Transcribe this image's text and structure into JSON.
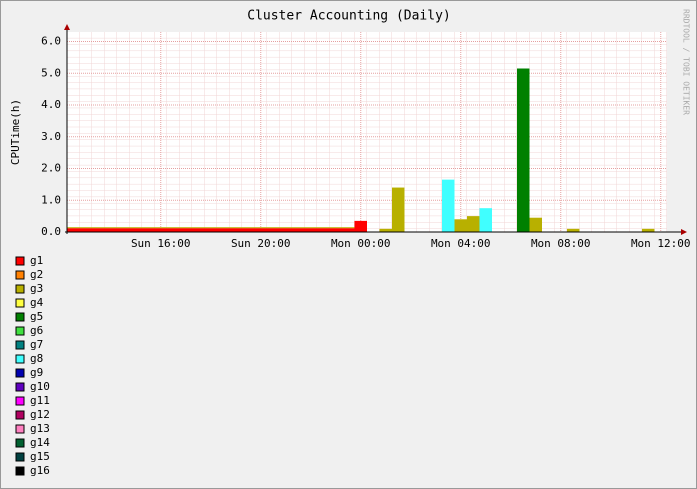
{
  "chart_data": {
    "type": "bar",
    "stacked": true,
    "title": "Cluster Accounting (Daily)",
    "ylabel": "CPUTime(h)",
    "watermark": "RRDTOOL / TOBI OETIKER",
    "categories": [
      null,
      null,
      null,
      null,
      null,
      null,
      null,
      "Sun 16:00",
      null,
      null,
      null,
      null,
      null,
      null,
      null,
      "Sun 20:00",
      null,
      null,
      null,
      null,
      null,
      null,
      null,
      "Mon 00:00",
      null,
      null,
      null,
      null,
      null,
      null,
      null,
      "Mon 04:00",
      null,
      null,
      null,
      null,
      null,
      null,
      null,
      "Mon 08:00",
      null,
      null,
      null,
      null,
      null,
      null,
      null,
      "Mon 12:00"
    ],
    "ylim": [
      0,
      6.3
    ],
    "yticks": [
      {
        "value": 0,
        "label": "0.0"
      },
      {
        "value": 1,
        "label": "1.0"
      },
      {
        "value": 2,
        "label": "2.0"
      },
      {
        "value": 3,
        "label": "3.0"
      },
      {
        "value": 4,
        "label": "4.0"
      },
      {
        "value": 5,
        "label": "5.0"
      },
      {
        "value": 6,
        "label": "6.0"
      }
    ],
    "grid": true,
    "series": [
      {
        "name": "g1",
        "color": "#ff0000",
        "values": [
          0.12,
          0.12,
          0.12,
          0.12,
          0.12,
          0.12,
          0.12,
          0.12,
          0.12,
          0.12,
          0.12,
          0.12,
          0.12,
          0.12,
          0.12,
          0.12,
          0.12,
          0.12,
          0.12,
          0.12,
          0.12,
          0.12,
          0.12,
          0.35,
          0,
          0,
          0,
          0,
          0,
          0,
          0,
          0,
          0,
          0,
          0,
          0,
          0,
          0,
          0,
          0,
          0,
          0,
          0,
          0,
          0,
          0,
          0,
          0
        ]
      },
      {
        "name": "g2",
        "color": "#ff8000",
        "values": [
          0,
          0,
          0,
          0,
          0,
          0,
          0,
          0,
          0,
          0,
          0,
          0,
          0,
          0,
          0,
          0,
          0,
          0,
          0,
          0,
          0,
          0,
          0,
          0,
          0,
          0,
          0,
          0,
          0,
          0,
          0,
          0,
          0,
          0,
          0,
          0,
          0,
          0,
          0,
          0,
          0,
          0,
          0,
          0,
          0,
          0,
          0,
          0
        ]
      },
      {
        "name": "g3",
        "color": "#b8b000",
        "values": [
          0.03,
          0.03,
          0.03,
          0.03,
          0.03,
          0.03,
          0.03,
          0.03,
          0.03,
          0.03,
          0.03,
          0.03,
          0.03,
          0.03,
          0.03,
          0.03,
          0.03,
          0.03,
          0.03,
          0.03,
          0.03,
          0.03,
          0.03,
          0,
          0,
          0.1,
          1.4,
          0,
          0,
          0,
          0,
          0.4,
          0.5,
          0,
          0,
          0,
          0,
          0.45,
          0,
          0,
          0.1,
          0,
          0,
          0,
          0,
          0,
          0.1,
          0
        ]
      },
      {
        "name": "g4",
        "color": "#ffff40",
        "values": [
          0,
          0,
          0,
          0,
          0,
          0,
          0,
          0,
          0,
          0,
          0,
          0,
          0,
          0,
          0,
          0,
          0,
          0,
          0,
          0,
          0,
          0,
          0,
          0,
          0,
          0,
          0,
          0,
          0,
          0,
          0,
          0,
          0,
          0,
          0,
          0,
          0,
          0,
          0,
          0,
          0,
          0,
          0,
          0,
          0,
          0,
          0,
          0
        ]
      },
      {
        "name": "g5",
        "color": "#008000",
        "values": [
          0,
          0,
          0,
          0,
          0,
          0,
          0,
          0,
          0,
          0,
          0,
          0,
          0,
          0,
          0,
          0,
          0,
          0,
          0,
          0,
          0,
          0,
          0,
          0,
          0,
          0,
          0,
          0,
          0,
          0,
          0,
          0,
          0,
          0,
          0,
          0,
          5.15,
          0,
          0,
          0,
          0,
          0,
          0,
          0,
          0,
          0,
          0,
          0
        ]
      },
      {
        "name": "g6",
        "color": "#40e040",
        "values": [
          0,
          0,
          0,
          0,
          0,
          0,
          0,
          0,
          0,
          0,
          0,
          0,
          0,
          0,
          0,
          0,
          0,
          0,
          0,
          0,
          0,
          0,
          0,
          0,
          0,
          0,
          0,
          0,
          0,
          0,
          0,
          0,
          0,
          0,
          0,
          0,
          0,
          0,
          0,
          0,
          0,
          0,
          0,
          0,
          0,
          0,
          0,
          0
        ]
      },
      {
        "name": "g7",
        "color": "#008080",
        "values": [
          0,
          0,
          0,
          0,
          0,
          0,
          0,
          0,
          0,
          0,
          0,
          0,
          0,
          0,
          0,
          0,
          0,
          0,
          0,
          0,
          0,
          0,
          0,
          0,
          0,
          0,
          0,
          0,
          0,
          0,
          0,
          0,
          0,
          0,
          0,
          0,
          0,
          0,
          0,
          0,
          0,
          0,
          0,
          0,
          0,
          0,
          0,
          0
        ]
      },
      {
        "name": "g8",
        "color": "#40ffff",
        "values": [
          0,
          0,
          0,
          0,
          0,
          0,
          0,
          0,
          0,
          0,
          0,
          0,
          0,
          0,
          0,
          0,
          0,
          0,
          0,
          0,
          0,
          0,
          0,
          0,
          0,
          0,
          0,
          0,
          0,
          0,
          1.65,
          0,
          0,
          0.75,
          0,
          0,
          0,
          0,
          0,
          0,
          0,
          0,
          0,
          0,
          0,
          0,
          0,
          0
        ]
      },
      {
        "name": "g9",
        "color": "#0000b0",
        "values": [
          0,
          0,
          0,
          0,
          0,
          0,
          0,
          0,
          0,
          0,
          0,
          0,
          0,
          0,
          0,
          0,
          0,
          0,
          0,
          0,
          0,
          0,
          0,
          0,
          0,
          0,
          0,
          0,
          0,
          0,
          0,
          0,
          0,
          0,
          0,
          0,
          0,
          0,
          0,
          0,
          0,
          0,
          0,
          0,
          0,
          0,
          0,
          0
        ]
      },
      {
        "name": "g10",
        "color": "#6000c0",
        "values": [
          0,
          0,
          0,
          0,
          0,
          0,
          0,
          0,
          0,
          0,
          0,
          0,
          0,
          0,
          0,
          0,
          0,
          0,
          0,
          0,
          0,
          0,
          0,
          0,
          0,
          0,
          0,
          0,
          0,
          0,
          0,
          0,
          0,
          0,
          0,
          0,
          0,
          0,
          0,
          0,
          0,
          0,
          0,
          0,
          0,
          0,
          0,
          0
        ]
      },
      {
        "name": "g11",
        "color": "#ff00ff",
        "values": [
          0,
          0,
          0,
          0,
          0,
          0,
          0,
          0,
          0,
          0,
          0,
          0,
          0,
          0,
          0,
          0,
          0,
          0,
          0,
          0,
          0,
          0,
          0,
          0,
          0,
          0,
          0,
          0,
          0,
          0,
          0,
          0,
          0,
          0,
          0,
          0,
          0,
          0,
          0,
          0,
          0,
          0,
          0,
          0,
          0,
          0,
          0,
          0
        ]
      },
      {
        "name": "g12",
        "color": "#b00060",
        "values": [
          0,
          0,
          0,
          0,
          0,
          0,
          0,
          0,
          0,
          0,
          0,
          0,
          0,
          0,
          0,
          0,
          0,
          0,
          0,
          0,
          0,
          0,
          0,
          0,
          0,
          0,
          0,
          0,
          0,
          0,
          0,
          0,
          0,
          0,
          0,
          0,
          0,
          0,
          0,
          0,
          0,
          0,
          0,
          0,
          0,
          0,
          0,
          0
        ]
      },
      {
        "name": "g13",
        "color": "#ff80c0",
        "values": [
          0,
          0,
          0,
          0,
          0,
          0,
          0,
          0,
          0,
          0,
          0,
          0,
          0,
          0,
          0,
          0,
          0,
          0,
          0,
          0,
          0,
          0,
          0,
          0,
          0,
          0,
          0,
          0,
          0,
          0,
          0,
          0,
          0,
          0,
          0,
          0,
          0,
          0,
          0,
          0,
          0,
          0,
          0,
          0,
          0,
          0,
          0,
          0
        ]
      },
      {
        "name": "g14",
        "color": "#006030",
        "values": [
          0,
          0,
          0,
          0,
          0,
          0,
          0,
          0,
          0,
          0,
          0,
          0,
          0,
          0,
          0,
          0,
          0,
          0,
          0,
          0,
          0,
          0,
          0,
          0,
          0,
          0,
          0,
          0,
          0,
          0,
          0,
          0,
          0,
          0,
          0,
          0,
          0,
          0,
          0,
          0,
          0,
          0,
          0,
          0,
          0,
          0,
          0,
          0
        ]
      },
      {
        "name": "g15",
        "color": "#004040",
        "values": [
          0,
          0,
          0,
          0,
          0,
          0,
          0,
          0,
          0,
          0,
          0,
          0,
          0,
          0,
          0,
          0,
          0,
          0,
          0,
          0,
          0,
          0,
          0,
          0,
          0,
          0,
          0,
          0,
          0,
          0,
          0,
          0,
          0,
          0,
          0,
          0,
          0,
          0,
          0,
          0,
          0,
          0,
          0,
          0,
          0,
          0,
          0,
          0
        ]
      },
      {
        "name": "g16",
        "color": "#000000",
        "values": [
          0,
          0,
          0,
          0,
          0,
          0,
          0,
          0,
          0,
          0,
          0,
          0,
          0,
          0,
          0,
          0,
          0,
          0,
          0,
          0,
          0,
          0,
          0,
          0,
          0,
          0,
          0,
          0,
          0,
          0,
          0,
          0,
          0,
          0,
          0,
          0,
          0,
          0,
          0,
          0,
          0,
          0,
          0,
          0,
          0,
          0,
          0,
          0
        ]
      }
    ]
  }
}
